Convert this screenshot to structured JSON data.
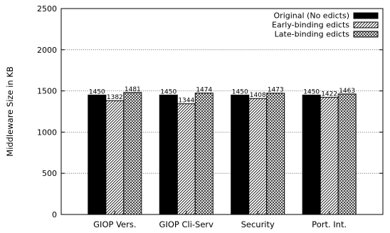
{
  "chart_data": {
    "type": "bar",
    "title": "",
    "xlabel": "",
    "ylabel": "Middleware Size in KB",
    "ylim": [
      0,
      2500
    ],
    "yticks": [
      0,
      500,
      1000,
      1500,
      2000,
      2500
    ],
    "grid": "horizontal dotted",
    "legend_position": "top-right",
    "categories": [
      "GIOP Vers.",
      "GIOP Cli-Serv",
      "Security",
      "Port. Int."
    ],
    "series": [
      {
        "name": "Original (No edicts)",
        "values": [
          1450,
          1450,
          1450,
          1450
        ],
        "fill": "solid",
        "color": "#000000"
      },
      {
        "name": "Early-binding edicts",
        "values": [
          1382,
          1344,
          1408,
          1422
        ],
        "fill": "diagonal-hatch",
        "color": "#000000"
      },
      {
        "name": "Late-binding edicts",
        "values": [
          1481,
          1474,
          1473,
          1463
        ],
        "fill": "crosshatch",
        "color": "#000000"
      }
    ]
  }
}
